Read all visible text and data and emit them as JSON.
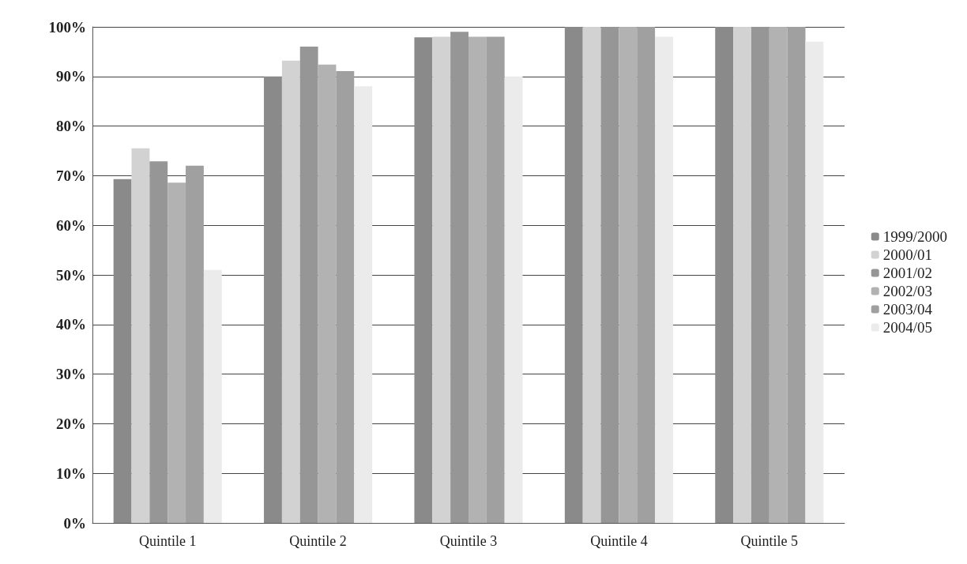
{
  "chart_data": {
    "type": "bar",
    "categories": [
      "Quintile 1",
      "Quintile 2",
      "Quintile 3",
      "Quintile 4",
      "Quintile 5"
    ],
    "series": [
      {
        "name": "1999/2000",
        "color": "#8a8a8a",
        "values": [
          69.3,
          90.0,
          97.9,
          100,
          100
        ]
      },
      {
        "name": "2000/01",
        "color": "#d2d2d2",
        "values": [
          75.5,
          93.2,
          98,
          100,
          100
        ]
      },
      {
        "name": "2001/02",
        "color": "#969696",
        "values": [
          72.9,
          96.0,
          99.0,
          100,
          100
        ]
      },
      {
        "name": "2002/03",
        "color": "#b2b2b2",
        "values": [
          68.6,
          92.4,
          98,
          100,
          100
        ]
      },
      {
        "name": "2003/04",
        "color": "#a0a0a0",
        "values": [
          72.0,
          91.1,
          98,
          100,
          100
        ]
      },
      {
        "name": "2004/05",
        "color": "#ebebeb",
        "values": [
          51,
          88,
          90,
          98,
          97
        ]
      }
    ],
    "ylim": [
      0,
      100
    ],
    "yticks": [
      {
        "value": 0,
        "label": "0%"
      },
      {
        "value": 10,
        "label": "10%"
      },
      {
        "value": 20,
        "label": "20%"
      },
      {
        "value": 30,
        "label": "30%"
      },
      {
        "value": 40,
        "label": "40%"
      },
      {
        "value": 50,
        "label": "50%"
      },
      {
        "value": 60,
        "label": "60%"
      },
      {
        "value": 70,
        "label": "70%"
      },
      {
        "value": 80,
        "label": "80%"
      },
      {
        "value": 90,
        "label": "90%"
      },
      {
        "value": 100,
        "label": "100%"
      }
    ],
    "grid": "y",
    "legend": "right"
  }
}
